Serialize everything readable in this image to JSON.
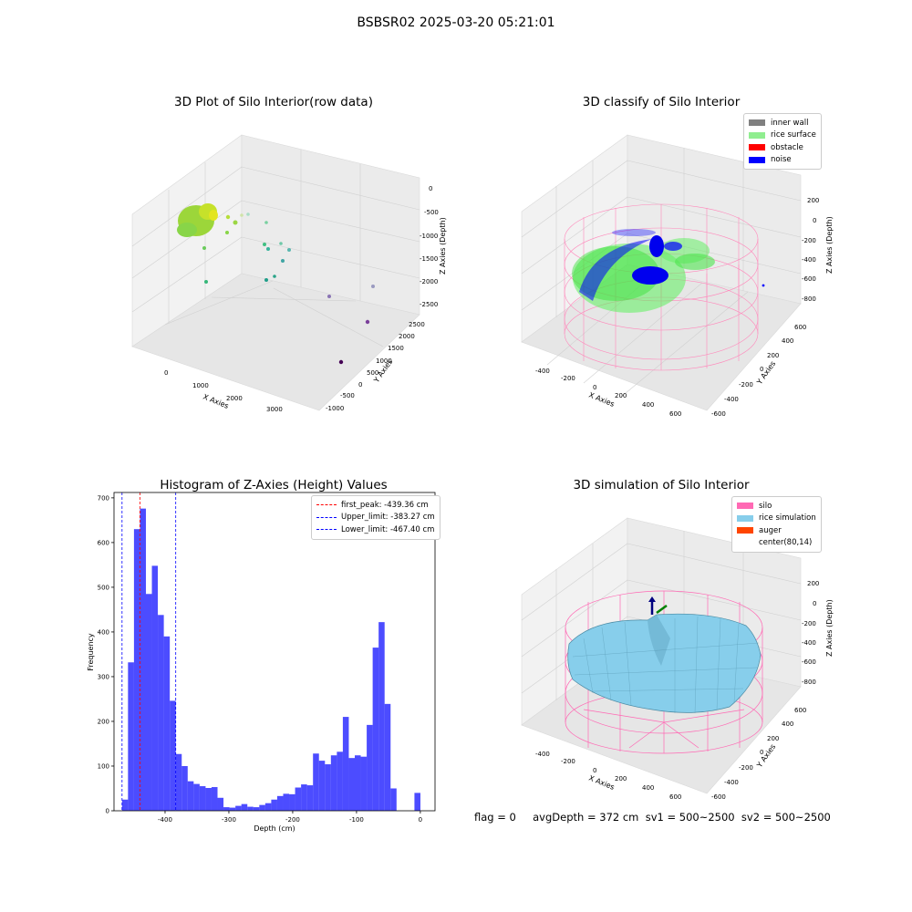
{
  "figure": {
    "suptitle": "BSBSR02 2025-03-20 05:21:01",
    "footer": "flag = 0     avgDepth = 372 cm  sv1 = 500~2500  sv2 = 500~2500"
  },
  "panels": {
    "raw": {
      "title": "3D Plot of Silo Interior(row data)",
      "xlabel": "X Axies",
      "ylabel": "Y Axies",
      "zlabel": "Z Axies (Depth)",
      "xticks": [
        "0",
        "1000",
        "2000",
        "3000"
      ],
      "yticks": [
        "-1000",
        "-500",
        "0",
        "500",
        "1000",
        "1500",
        "2000",
        "2500"
      ],
      "zticks": [
        "0",
        "-500",
        "-1000",
        "-1500",
        "-2000",
        "-2500"
      ]
    },
    "classify": {
      "title": "3D classify of Silo Interior",
      "xlabel": "X Axies",
      "ylabel": "Y Axies",
      "zlabel": "Z Axies (Depth)",
      "xticks": [
        "-400",
        "-200",
        "0",
        "200",
        "400",
        "600"
      ],
      "yticks": [
        "-600",
        "-400",
        "-200",
        "0",
        "200",
        "400",
        "600"
      ],
      "zticks": [
        "200",
        "0",
        "-200",
        "-400",
        "-600",
        "-800"
      ],
      "legend": [
        {
          "label": "inner wall",
          "color": "#808080"
        },
        {
          "label": "rice surface",
          "color": "#90ee90"
        },
        {
          "label": "obstacle",
          "color": "#ff0000"
        },
        {
          "label": "noise",
          "color": "#0000ff"
        }
      ]
    },
    "simulation": {
      "title": "3D simulation of Silo Interior",
      "xlabel": "X Axies",
      "ylabel": "Y Axies",
      "zlabel": "Z Axies (Depth)",
      "xticks": [
        "-400",
        "-200",
        "0",
        "200",
        "400",
        "600"
      ],
      "yticks": [
        "-600",
        "-400",
        "-200",
        "0",
        "200",
        "400",
        "600"
      ],
      "zticks": [
        "200",
        "0",
        "-200",
        "-400",
        "-600",
        "-800"
      ],
      "legend": [
        {
          "label": "silo",
          "color": "#ff69b4"
        },
        {
          "label": "rice simulation",
          "color": "#87ceeb"
        },
        {
          "label": "auger",
          "color": "#ff4500"
        },
        {
          "label": "center(80,14)",
          "color": "#ffffff"
        }
      ]
    }
  },
  "chart_data": {
    "type": "bar",
    "title": "Histogram of Z-Axies (Height) Values",
    "xlabel": "Depth (cm)",
    "ylabel": "Frequency",
    "xlim": [
      -480,
      23
    ],
    "ylim": [
      0,
      712
    ],
    "xticks": [
      -400,
      -300,
      -200,
      -100,
      0
    ],
    "yticks": [
      0,
      100,
      200,
      300,
      400,
      500,
      600,
      700
    ],
    "bar_color": "#0000ff",
    "bin_start": -467.4,
    "bin_width": 9.35,
    "values": [
      25,
      332,
      630,
      676,
      485,
      548,
      438,
      390,
      246,
      127,
      100,
      66,
      60,
      55,
      51,
      53,
      29,
      8,
      7,
      11,
      15,
      9,
      8,
      13,
      17,
      25,
      33,
      38,
      37,
      52,
      59,
      57,
      128,
      112,
      104,
      124,
      132,
      210,
      118,
      124,
      121,
      192,
      365,
      422,
      239,
      50,
      0,
      0,
      0,
      40
    ],
    "vlines": [
      {
        "label": "first_peak: -439.36 cm",
        "x": -439.36,
        "color": "#ff0000"
      },
      {
        "label": "Upper_limit: -383.27 cm",
        "x": -383.27,
        "color": "#0000ff"
      },
      {
        "label": "Lower_limit: -467.40 cm",
        "x": -467.4,
        "color": "#0000ff"
      }
    ]
  }
}
